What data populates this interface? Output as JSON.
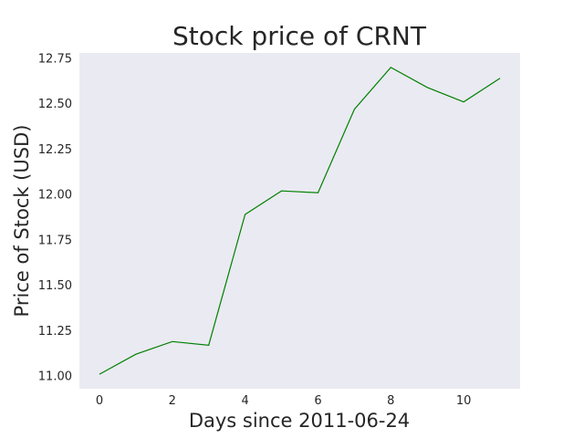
{
  "chart_data": {
    "type": "line",
    "title": "Stock price of CRNT",
    "xlabel": "Days since 2011-06-24",
    "ylabel": "Price of Stock (USD)",
    "x": [
      0,
      1,
      2,
      3,
      4,
      5,
      6,
      7,
      8,
      9,
      10,
      11
    ],
    "series": [
      {
        "values": [
          11.01,
          11.12,
          11.19,
          11.17,
          11.89,
          12.02,
          12.01,
          12.47,
          12.7,
          12.59,
          12.51,
          12.64
        ]
      }
    ],
    "xlim": [
      -0.55,
      11.55
    ],
    "ylim": [
      10.93,
      12.78
    ],
    "xticks": [
      0,
      2,
      4,
      6,
      8,
      10
    ],
    "xtick_labels": [
      "0",
      "2",
      "4",
      "6",
      "8",
      "10"
    ],
    "yticks": [
      11.0,
      11.25,
      11.5,
      11.75,
      12.0,
      12.25,
      12.5,
      12.75
    ],
    "ytick_labels": [
      "11.00",
      "11.25",
      "11.50",
      "11.75",
      "12.00",
      "12.25",
      "12.50",
      "12.75"
    ],
    "grid": false,
    "legend": false,
    "colors": {
      "line": "#008000",
      "plot_background": "#eaeaf2",
      "text": "#262626"
    }
  }
}
